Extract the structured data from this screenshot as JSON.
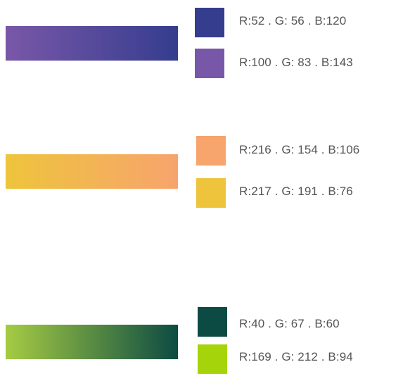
{
  "groups": [
    {
      "gradient": {
        "from": "#7957A8",
        "to": "#353D8E"
      },
      "swatches": [
        {
          "color": "#353D8E",
          "label": "R:52 . G: 56 . B:120"
        },
        {
          "color": "#7957A8",
          "label": "R:100 . G: 83 . B:143"
        }
      ]
    },
    {
      "gradient": {
        "from": "#EEC43C",
        "to": "#F7A46D"
      },
      "swatches": [
        {
          "color": "#F7A46D",
          "label": "R:216 . G: 154 . B:106"
        },
        {
          "color": "#EEC43C",
          "label": "R:217 . G: 191 . B:76"
        }
      ]
    },
    {
      "gradient": {
        "from": "#A6CC43",
        "to": "#0C4B43"
      },
      "swatches": [
        {
          "color": "#0C4B43",
          "label": "R:40 . G: 67 . B:60"
        },
        {
          "color": "#A6D40A",
          "label": "R:169 . G: 212 . B:94"
        }
      ]
    }
  ]
}
